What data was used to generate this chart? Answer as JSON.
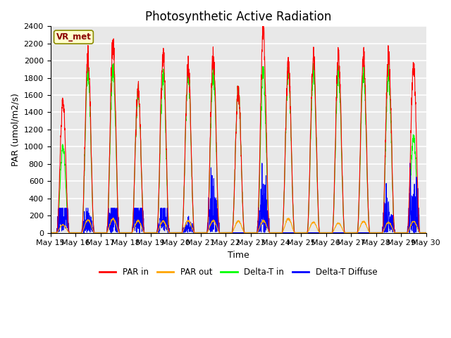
{
  "title": "Photosynthetic Active Radiation",
  "ylabel": "PAR (umol/m2/s)",
  "xlabel": "Time",
  "legend_label": "VR_met",
  "series_labels": [
    "PAR in",
    "PAR out",
    "Delta-T in",
    "Delta-T Diffuse"
  ],
  "series_colors": [
    "red",
    "orange",
    "lime",
    "blue"
  ],
  "ylim": [
    0,
    2400
  ],
  "num_days": 15,
  "xtick_labels": [
    "May 15",
    "May 16",
    "May 17",
    "May 18",
    "May 19",
    "May 20",
    "May 21",
    "May 22",
    "May 23",
    "May 24",
    "May 25",
    "May 26",
    "May 27",
    "May 28",
    "May 29",
    "May 30"
  ],
  "background_color": "#e8e8e8",
  "grid_color": "white",
  "title_fontsize": 12,
  "axis_fontsize": 9,
  "tick_fontsize": 8
}
